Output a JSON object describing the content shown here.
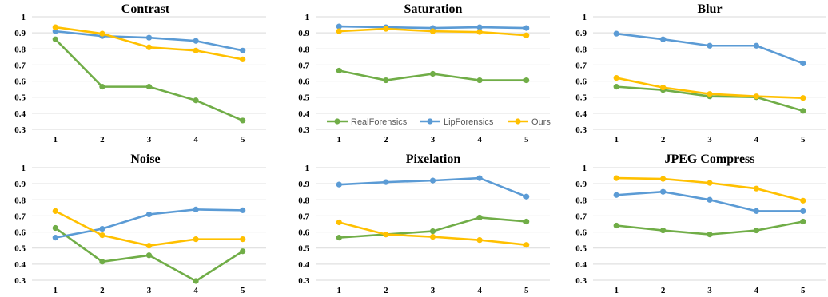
{
  "colors": {
    "RealForensics": "#70ad47",
    "LipForensics": "#5b9bd5",
    "Ours": "#ffc000"
  },
  "chart_data": [
    {
      "type": "line",
      "title": "Contrast",
      "x": [
        1,
        2,
        3,
        4,
        5
      ],
      "ylim": [
        0.3,
        1.0
      ],
      "yticks": [
        "0.3",
        "0.4",
        "0.5",
        "0.6",
        "0.7",
        "0.8",
        "0.9",
        "1"
      ],
      "grid": true,
      "series": [
        {
          "name": "RealForensics",
          "values": [
            0.86,
            0.565,
            0.565,
            0.48,
            0.355
          ]
        },
        {
          "name": "LipForensics",
          "values": [
            0.91,
            0.88,
            0.87,
            0.85,
            0.79
          ]
        },
        {
          "name": "Ours",
          "values": [
            0.935,
            0.895,
            0.81,
            0.79,
            0.735
          ]
        }
      ]
    },
    {
      "type": "line",
      "title": "Saturation",
      "x": [
        1,
        2,
        3,
        4,
        5
      ],
      "ylim": [
        0.3,
        1.0
      ],
      "yticks": [
        "0.3",
        "0.4",
        "0.5",
        "0.6",
        "0.7",
        "0.8",
        "0.9",
        "1"
      ],
      "grid": true,
      "legend": "bottom",
      "series": [
        {
          "name": "RealForensics",
          "values": [
            0.665,
            0.605,
            0.645,
            0.605,
            0.605
          ]
        },
        {
          "name": "LipForensics",
          "values": [
            0.94,
            0.935,
            0.93,
            0.935,
            0.93
          ]
        },
        {
          "name": "Ours",
          "values": [
            0.91,
            0.925,
            0.91,
            0.905,
            0.885
          ]
        }
      ]
    },
    {
      "type": "line",
      "title": "Blur",
      "x": [
        1,
        2,
        3,
        4,
        5
      ],
      "ylim": [
        0.3,
        1.0
      ],
      "yticks": [
        "0.3",
        "0.4",
        "0.5",
        "0.6",
        "0.7",
        "0.8",
        "0.9",
        "1"
      ],
      "grid": true,
      "series": [
        {
          "name": "RealForensics",
          "values": [
            0.565,
            0.545,
            0.505,
            0.5,
            0.415
          ]
        },
        {
          "name": "LipForensics",
          "values": [
            0.895,
            0.86,
            0.82,
            0.82,
            0.71
          ]
        },
        {
          "name": "Ours",
          "values": [
            0.62,
            0.56,
            0.52,
            0.505,
            0.495
          ]
        }
      ]
    },
    {
      "type": "line",
      "title": "Noise",
      "x": [
        1,
        2,
        3,
        4,
        5
      ],
      "ylim": [
        0.3,
        1.0
      ],
      "yticks": [
        "0.3",
        "0.4",
        "0.5",
        "0.6",
        "0.7",
        "0.8",
        "0.9",
        "1"
      ],
      "grid": true,
      "series": [
        {
          "name": "RealForensics",
          "values": [
            0.625,
            0.415,
            0.455,
            0.295,
            0.48
          ]
        },
        {
          "name": "LipForensics",
          "values": [
            0.565,
            0.62,
            0.71,
            0.74,
            0.735
          ]
        },
        {
          "name": "Ours",
          "values": [
            0.73,
            0.58,
            0.515,
            0.555,
            0.555
          ]
        }
      ]
    },
    {
      "type": "line",
      "title": "Pixelation",
      "x": [
        1,
        2,
        3,
        4,
        5
      ],
      "ylim": [
        0.3,
        1.0
      ],
      "yticks": [
        "0.3",
        "0.4",
        "0.5",
        "0.6",
        "0.7",
        "0.8",
        "0.9",
        "1"
      ],
      "grid": true,
      "series": [
        {
          "name": "RealForensics",
          "values": [
            0.565,
            0.585,
            0.605,
            0.69,
            0.665
          ]
        },
        {
          "name": "LipForensics",
          "values": [
            0.895,
            0.91,
            0.92,
            0.935,
            0.82
          ]
        },
        {
          "name": "Ours",
          "values": [
            0.66,
            0.585,
            0.57,
            0.55,
            0.52
          ]
        }
      ]
    },
    {
      "type": "line",
      "title": "JPEG Compress",
      "x": [
        1,
        2,
        3,
        4,
        5
      ],
      "ylim": [
        0.3,
        1.0
      ],
      "yticks": [
        "0.3",
        "0.4",
        "0.5",
        "0.6",
        "0.7",
        "0.8",
        "0.9",
        "1"
      ],
      "grid": true,
      "series": [
        {
          "name": "RealForensics",
          "values": [
            0.64,
            0.61,
            0.585,
            0.61,
            0.665
          ]
        },
        {
          "name": "LipForensics",
          "values": [
            0.83,
            0.85,
            0.8,
            0.73,
            0.73
          ]
        },
        {
          "name": "Ours",
          "values": [
            0.935,
            0.93,
            0.905,
            0.87,
            0.795
          ]
        }
      ]
    }
  ]
}
